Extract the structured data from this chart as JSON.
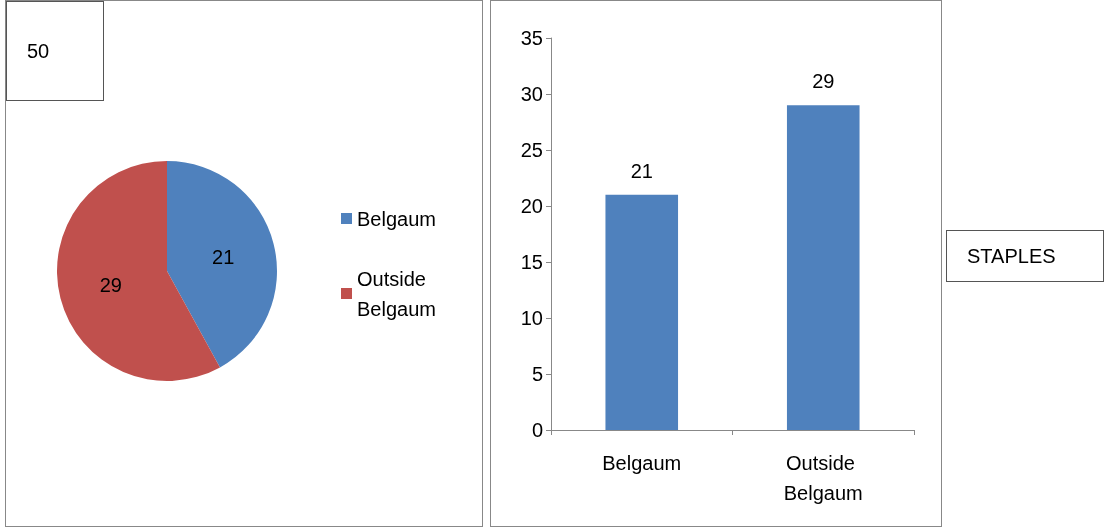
{
  "chart_data": [
    {
      "type": "pie",
      "categories": [
        "Belgaum",
        "Outside Belgaum"
      ],
      "values": [
        21,
        29
      ],
      "colors": [
        "#4f81bd",
        "#c0504d"
      ],
      "data_labels": true,
      "legend": "right",
      "annotations": [
        "50"
      ]
    },
    {
      "type": "bar",
      "categories": [
        "Belgaum",
        "Outside Belgaum"
      ],
      "values": [
        21,
        29
      ],
      "color": "#4f81bd",
      "ylim": [
        0,
        35
      ],
      "yticks": [
        0,
        5,
        10,
        15,
        20,
        25,
        30,
        35
      ],
      "data_labels": true,
      "grid": false,
      "legend": false,
      "annotations": [
        "STAPLES"
      ]
    }
  ]
}
